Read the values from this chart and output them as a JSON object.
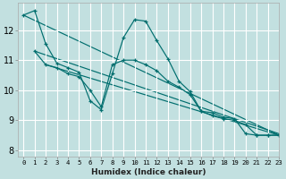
{
  "xlabel": "Humidex (Indice chaleur)",
  "background_color": "#c2e0e0",
  "grid_color": "#ffffff",
  "line_color": "#006e6e",
  "xlim": [
    -0.5,
    23
  ],
  "ylim": [
    7.8,
    12.9
  ],
  "x_ticks": [
    0,
    1,
    2,
    3,
    4,
    5,
    6,
    7,
    8,
    9,
    10,
    11,
    12,
    13,
    14,
    15,
    16,
    17,
    18,
    19,
    20,
    21,
    22,
    23
  ],
  "y_ticks": [
    8,
    9,
    10,
    11,
    12
  ],
  "series1_x": [
    0,
    1,
    2,
    3,
    4,
    5,
    6,
    7,
    8,
    9,
    10,
    11,
    12,
    13,
    14,
    15,
    16,
    17,
    18,
    19,
    20,
    21,
    22,
    23
  ],
  "series1_y": [
    12.5,
    12.65,
    11.55,
    10.9,
    10.75,
    10.6,
    9.65,
    9.35,
    10.55,
    11.75,
    12.35,
    12.3,
    11.65,
    11.05,
    10.3,
    9.95,
    9.3,
    9.25,
    9.1,
    9.05,
    8.55,
    8.5,
    8.5,
    8.5
  ],
  "series2_x": [
    1,
    2,
    3,
    4,
    5,
    6,
    7,
    8,
    9,
    10,
    11,
    12,
    13,
    14,
    15,
    16,
    17,
    18,
    19,
    20,
    21,
    22,
    23
  ],
  "series2_y": [
    11.3,
    10.85,
    10.75,
    10.55,
    10.45,
    10.0,
    9.45,
    10.85,
    11.0,
    11.0,
    10.85,
    10.65,
    10.3,
    10.1,
    9.85,
    9.3,
    9.15,
    9.05,
    9.0,
    8.85,
    8.5,
    8.5,
    8.5
  ],
  "trend1_x": [
    0,
    23
  ],
  "trend1_y": [
    12.5,
    8.5
  ],
  "trend2_x": [
    1,
    23
  ],
  "trend2_y": [
    11.3,
    8.55
  ],
  "trend3_x": [
    2,
    23
  ],
  "trend3_y": [
    10.85,
    8.5
  ]
}
